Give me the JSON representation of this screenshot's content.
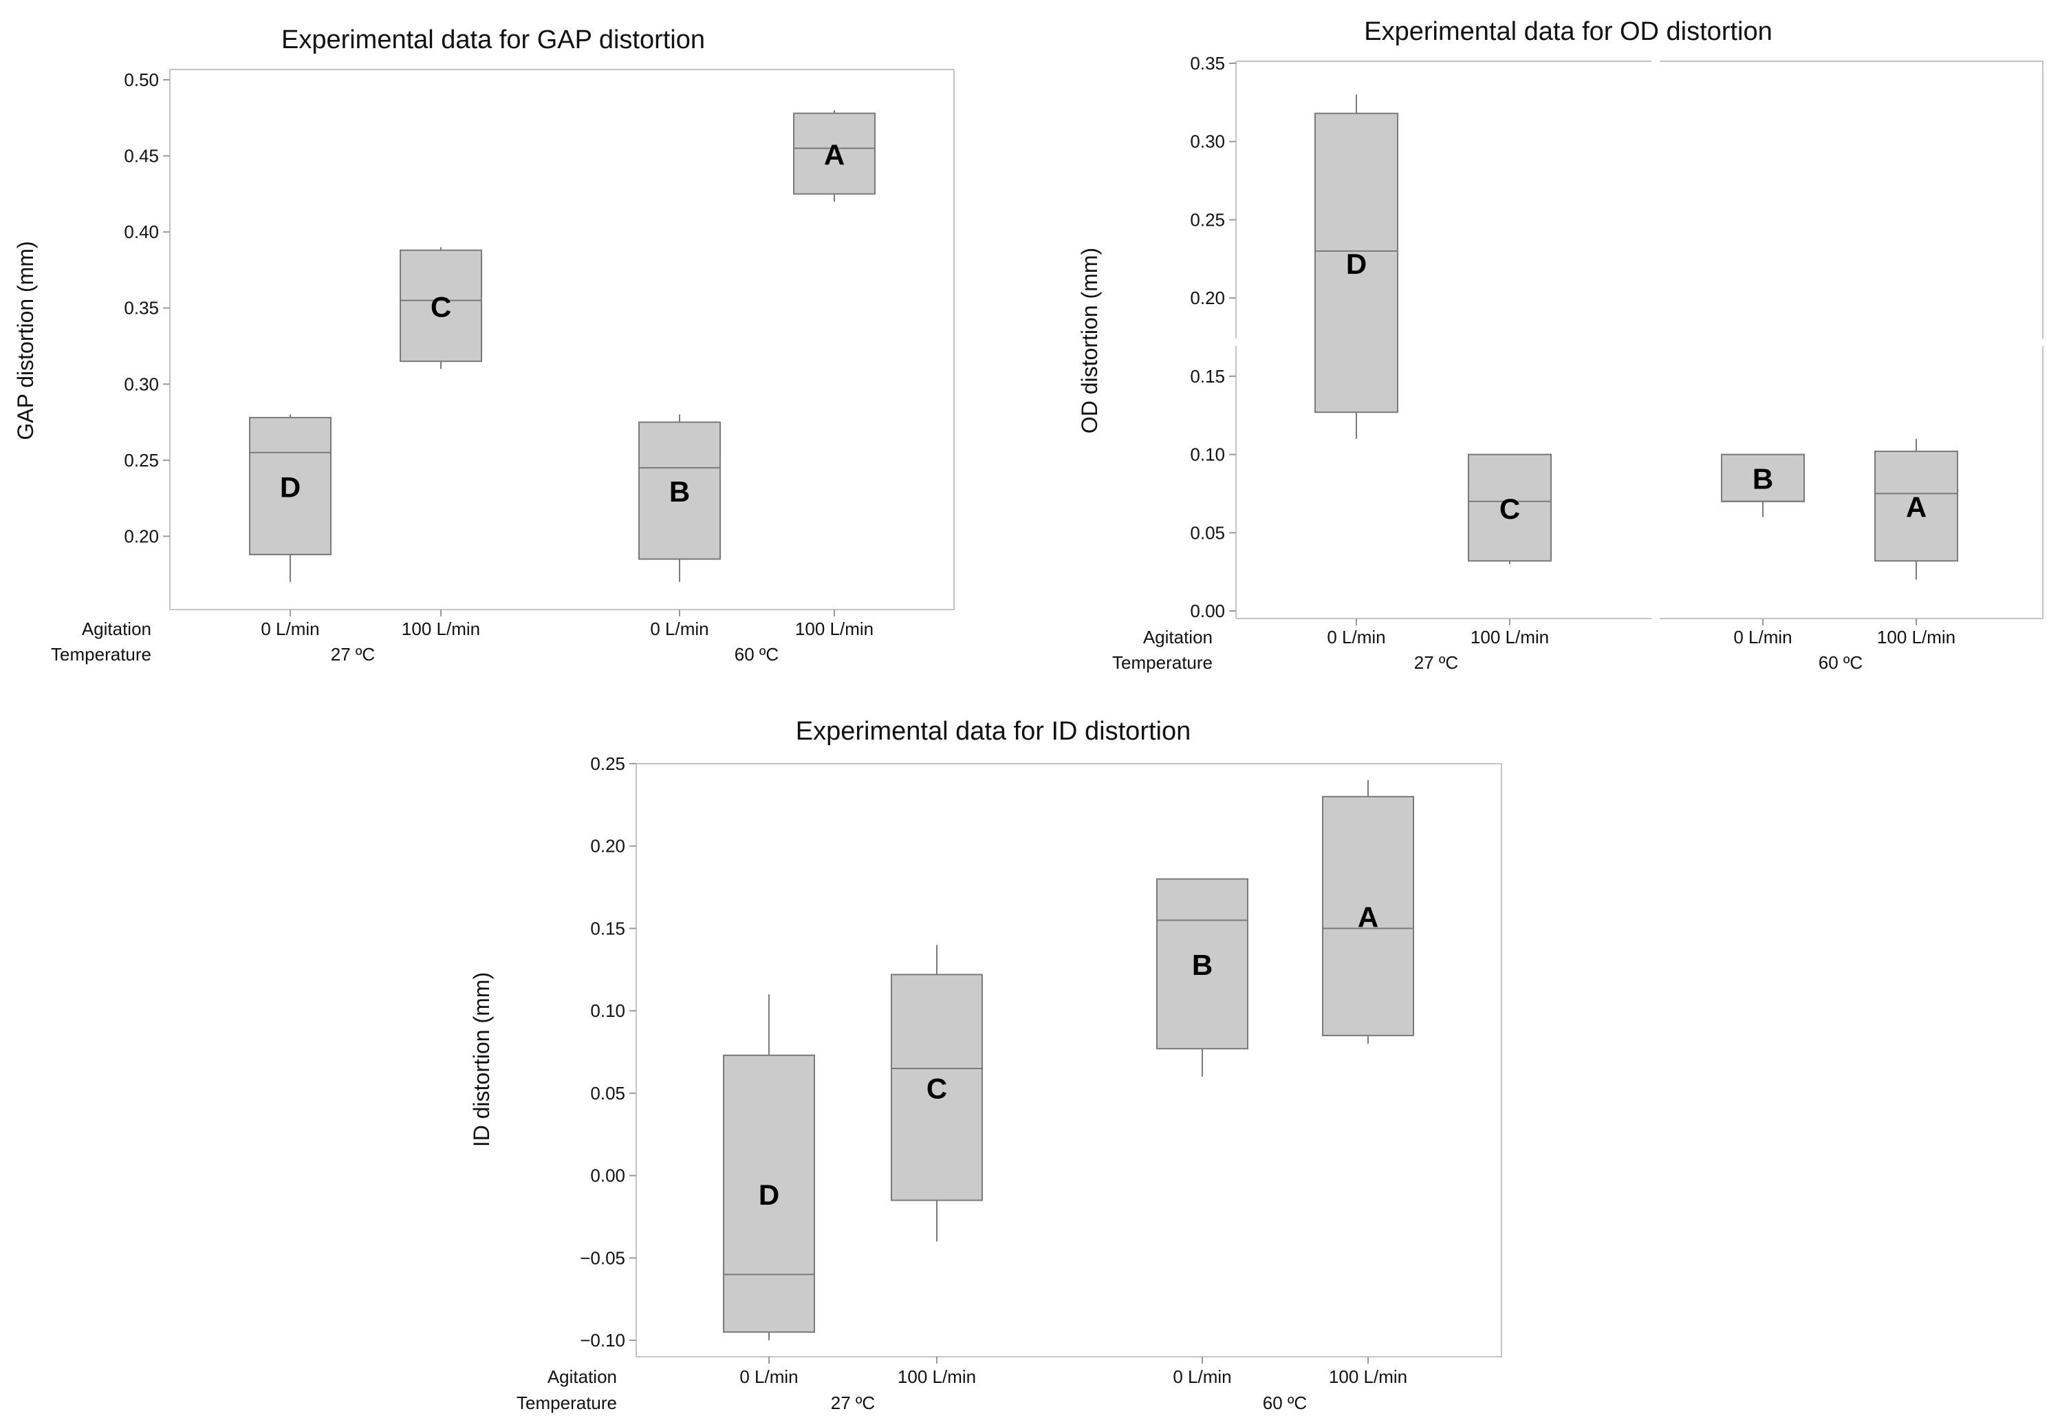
{
  "figure": {
    "box_fill": "#cbcbcb",
    "box_stroke": "#7a7a7a",
    "frame_stroke": "#c4c4c4"
  },
  "chart_data": [
    {
      "type": "boxplot",
      "title": "Experimental data for GAP distortion",
      "ylabel": "GAP distortion (mm)",
      "ylim": [
        0.15,
        0.5
      ],
      "yticks": [
        0.2,
        0.25,
        0.3,
        0.35,
        0.4,
        0.45,
        0.5
      ],
      "yticklabels": [
        "0.20",
        "0.25",
        "0.30",
        "0.35",
        "0.40",
        "0.45",
        "0.50"
      ],
      "factor_labels": [
        "Agitation",
        "Temperature"
      ],
      "temperature_groups": [
        "27 ºC",
        "60 ºC"
      ],
      "axis_break": false,
      "categories": [
        "0 L/min",
        "100 L/min",
        "0 L/min",
        "100 L/min"
      ],
      "boxes": [
        {
          "agitation": "0 L/min",
          "temperature": "27 ºC",
          "min": 0.17,
          "q1": 0.188,
          "median": 0.255,
          "q3": 0.278,
          "max": 0.28,
          "letter": "D"
        },
        {
          "agitation": "100 L/min",
          "temperature": "27 ºC",
          "min": 0.31,
          "q1": 0.315,
          "median": 0.355,
          "q3": 0.388,
          "max": 0.39,
          "letter": "C"
        },
        {
          "agitation": "0 L/min",
          "temperature": "60 ºC",
          "min": 0.17,
          "q1": 0.185,
          "median": 0.245,
          "q3": 0.275,
          "max": 0.28,
          "letter": "B"
        },
        {
          "agitation": "100 L/min",
          "temperature": "60 ºC",
          "min": 0.42,
          "q1": 0.425,
          "median": 0.455,
          "q3": 0.478,
          "max": 0.48,
          "letter": "A"
        }
      ]
    },
    {
      "type": "boxplot",
      "title": "Experimental data for OD distortion",
      "ylabel": "OD distortion (mm)",
      "ylim": [
        0,
        0.35
      ],
      "yticks": [
        0,
        0.05,
        0.1,
        0.15,
        0.2,
        0.25,
        0.3,
        0.35
      ],
      "yticklabels": [
        "0.00",
        "0.05",
        "0.10",
        "0.15",
        "0.20",
        "0.25",
        "0.30",
        "0.35"
      ],
      "factor_labels": [
        "Agitation",
        "Temperature"
      ],
      "temperature_groups": [
        "27 ºC",
        "60 ºC"
      ],
      "axis_break": true,
      "categories": [
        "0 L/min",
        "100 L/min",
        "0 L/min",
        "100 L/min"
      ],
      "boxes": [
        {
          "agitation": "0 L/min",
          "temperature": "27 ºC",
          "min": 0.11,
          "q1": 0.127,
          "median": 0.23,
          "q3": 0.318,
          "max": 0.33,
          "letter": "D"
        },
        {
          "agitation": "100 L/min",
          "temperature": "27 ºC",
          "min": 0.03,
          "q1": 0.032,
          "median": 0.07,
          "q3": 0.1,
          "max": 0.1,
          "letter": "C"
        },
        {
          "agitation": "0 L/min",
          "temperature": "60 ºC",
          "min": 0.06,
          "q1": 0.07,
          "median": 0.07,
          "q3": 0.1,
          "max": 0.1,
          "letter": "B"
        },
        {
          "agitation": "100 L/min",
          "temperature": "60 ºC",
          "min": 0.02,
          "q1": 0.032,
          "median": 0.075,
          "q3": 0.102,
          "max": 0.11,
          "letter": "A"
        }
      ]
    },
    {
      "type": "boxplot",
      "title": "Experimental data for ID distortion",
      "ylabel": "ID distortion (mm)",
      "ylim": [
        -0.12,
        0.26
      ],
      "yticks": [
        -0.1,
        -0.05,
        0,
        0.05,
        0.1,
        0.15,
        0.2,
        0.25
      ],
      "yticklabels": [
        "−0.10",
        "−0.05",
        "0.00",
        "0.05",
        "0.10",
        "0.15",
        "0.20",
        "0.25"
      ],
      "factor_labels": [
        "Agitation",
        "Temperature"
      ],
      "temperature_groups": [
        "27 ºC",
        "60 ºC"
      ],
      "axis_break": false,
      "categories": [
        "0 L/min",
        "100 L/min",
        "0 L/min",
        "100 L/min"
      ],
      "boxes": [
        {
          "agitation": "0 L/min",
          "temperature": "27 ºC",
          "min": -0.1,
          "q1": -0.095,
          "median": -0.06,
          "q3": 0.073,
          "max": 0.11,
          "letter": "D"
        },
        {
          "agitation": "100 L/min",
          "temperature": "27 ºC",
          "min": -0.04,
          "q1": -0.015,
          "median": 0.065,
          "q3": 0.122,
          "max": 0.14,
          "letter": "C"
        },
        {
          "agitation": "0 L/min",
          "temperature": "60 ºC",
          "min": 0.06,
          "q1": 0.077,
          "median": 0.155,
          "q3": 0.18,
          "max": 0.18,
          "letter": "B"
        },
        {
          "agitation": "100 L/min",
          "temperature": "60 ºC",
          "min": 0.08,
          "q1": 0.085,
          "median": 0.15,
          "q3": 0.23,
          "max": 0.24,
          "letter": "A"
        }
      ]
    }
  ]
}
